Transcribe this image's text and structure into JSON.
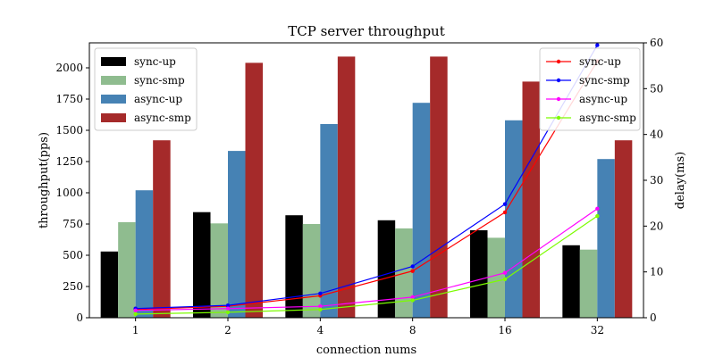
{
  "chart_data": {
    "type": "bar",
    "title": "TCP server throughput",
    "xlabel": "connection nums",
    "ylabel": "throughput(pps)",
    "y2label": "delay(ms)",
    "categories": [
      "1",
      "2",
      "4",
      "8",
      "16",
      "32"
    ],
    "ylim": [
      0,
      2200
    ],
    "y2lim": [
      0,
      60
    ],
    "yticks": [
      0,
      250,
      500,
      750,
      1000,
      1250,
      1500,
      1750,
      2000
    ],
    "y2ticks": [
      0,
      10,
      20,
      30,
      40,
      50,
      60
    ],
    "grid": false,
    "bar_series": [
      {
        "name": "sync-up",
        "color": "#000000",
        "values": [
          530,
          845,
          820,
          780,
          700,
          580
        ]
      },
      {
        "name": "sync-smp",
        "color": "#8fbc8f",
        "values": [
          765,
          755,
          750,
          715,
          640,
          545
        ]
      },
      {
        "name": "async-up",
        "color": "#4682b4",
        "values": [
          1020,
          1335,
          1550,
          1720,
          1580,
          1270
        ]
      },
      {
        "name": "async-smp",
        "color": "#a52a2a",
        "values": [
          1420,
          2040,
          2090,
          2090,
          1890,
          1420
        ]
      }
    ],
    "line_series": [
      {
        "name": "sync-up",
        "color": "#ff0000",
        "values": [
          1.8,
          2.5,
          4.8,
          10.2,
          23.0,
          56.0
        ]
      },
      {
        "name": "sync-smp",
        "color": "#0000ff",
        "values": [
          2.0,
          2.7,
          5.3,
          11.2,
          24.8,
          59.5
        ]
      },
      {
        "name": "async-up",
        "color": "#ff00ff",
        "values": [
          1.6,
          2.0,
          2.5,
          4.5,
          9.8,
          23.8
        ]
      },
      {
        "name": "async-smp",
        "color": "#7cfc00",
        "values": [
          0.8,
          1.2,
          1.8,
          3.8,
          8.4,
          22.2
        ]
      }
    ],
    "legend_bars_position": "upper-left",
    "legend_lines_position": "upper-right"
  }
}
